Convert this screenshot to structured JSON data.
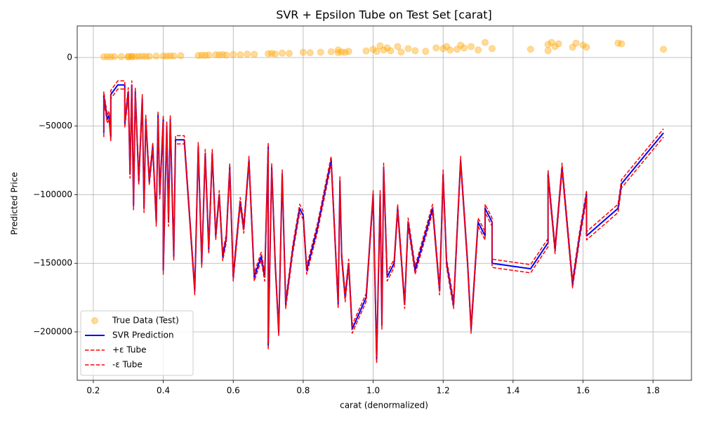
{
  "chart_data": {
    "type": "line",
    "title": "SVR + Epsilon Tube on Test Set [carat]",
    "xlabel": "carat (denormalized)",
    "ylabel": "Predicted Price",
    "xlim": [
      0.154,
      1.91
    ],
    "ylim": [
      -235300,
      23000
    ],
    "xticks": [
      0.2,
      0.4,
      0.6,
      0.8,
      {
        "value": 1,
        "label": "1.0"
      },
      1.2,
      1.4,
      1.6,
      1.8
    ],
    "yticks": [
      {
        "value": -200000,
        "label": "−200000"
      },
      {
        "value": -150000,
        "label": "−150000"
      },
      {
        "value": -100000,
        "label": "−100000"
      },
      {
        "value": -50000,
        "label": "−50000"
      },
      0
    ],
    "grid": true,
    "legend": "lower left",
    "x": [
      0.23,
      0.23,
      0.24,
      0.245,
      0.25,
      0.25,
      0.27,
      0.29,
      0.29,
      0.3,
      0.305,
      0.31,
      0.315,
      0.32,
      0.33,
      0.34,
      0.345,
      0.35,
      0.36,
      0.37,
      0.38,
      0.385,
      0.39,
      0.4,
      0.4,
      0.41,
      0.415,
      0.42,
      0.43,
      0.435,
      0.46,
      0.49,
      0.5,
      0.51,
      0.52,
      0.53,
      0.54,
      0.55,
      0.56,
      0.57,
      0.58,
      0.59,
      0.6,
      0.62,
      0.63,
      0.645,
      0.66,
      0.68,
      0.69,
      0.7,
      0.7,
      0.71,
      0.72,
      0.73,
      0.74,
      0.75,
      0.77,
      0.79,
      0.8,
      0.81,
      0.84,
      0.88,
      0.9,
      0.905,
      0.91,
      0.92,
      0.93,
      0.94,
      0.98,
      1.0,
      1.01,
      1.02,
      1.025,
      1.03,
      1.04,
      1.06,
      1.07,
      1.09,
      1.1,
      1.12,
      1.17,
      1.19,
      1.2,
      1.21,
      1.23,
      1.25,
      1.27,
      1.28,
      1.3,
      1.32,
      1.32,
      1.34,
      1.34,
      1.45,
      1.5,
      1.5,
      1.52,
      1.54,
      1.57,
      1.59,
      1.61,
      1.61,
      1.7,
      1.71,
      1.83
    ],
    "series": [
      {
        "name": "True Data (Test)",
        "type": "scatter",
        "color": "#ffa500",
        "alpha": 0.4,
        "x": [
          0.23,
          0.24,
          0.25,
          0.26,
          0.28,
          0.3,
          0.3,
          0.31,
          0.31,
          0.32,
          0.33,
          0.34,
          0.35,
          0.36,
          0.38,
          0.4,
          0.41,
          0.42,
          0.43,
          0.45,
          0.5,
          0.51,
          0.52,
          0.53,
          0.55,
          0.56,
          0.57,
          0.58,
          0.6,
          0.62,
          0.64,
          0.66,
          0.7,
          0.71,
          0.72,
          0.74,
          0.76,
          0.8,
          0.82,
          0.85,
          0.88,
          0.9,
          0.9,
          0.91,
          0.92,
          0.93,
          0.98,
          1.0,
          1.01,
          1.02,
          1.03,
          1.04,
          1.05,
          1.07,
          1.08,
          1.1,
          1.12,
          1.15,
          1.18,
          1.2,
          1.21,
          1.22,
          1.24,
          1.25,
          1.26,
          1.28,
          1.3,
          1.32,
          1.34,
          1.45,
          1.5,
          1.5,
          1.51,
          1.52,
          1.53,
          1.57,
          1.58,
          1.6,
          1.61,
          1.7,
          1.71,
          1.83
        ],
        "values": [
          500,
          600,
          500,
          700,
          600,
          700,
          500,
          800,
          600,
          700,
          800,
          900,
          800,
          900,
          1000,
          1100,
          1000,
          1200,
          1100,
          1300,
          1500,
          1700,
          1600,
          1800,
          2000,
          1900,
          2100,
          1800,
          2200,
          2000,
          2500,
          2300,
          2800,
          3000,
          2600,
          3200,
          3000,
          3800,
          3500,
          3900,
          4200,
          5500,
          3500,
          4000,
          3800,
          4500,
          4800,
          6000,
          4500,
          8500,
          5500,
          7000,
          5000,
          8000,
          4000,
          6500,
          5000,
          4500,
          7000,
          6500,
          8000,
          5500,
          6000,
          9000,
          7000,
          8000,
          5500,
          11000,
          6500,
          6000,
          9500,
          5000,
          11000,
          8000,
          10000,
          7500,
          10500,
          9000,
          7500,
          10500,
          10000,
          6000
        ]
      },
      {
        "name": "SVR Prediction",
        "type": "line",
        "color": "#0000ff",
        "linestyle": "solid",
        "values": [
          -55000,
          -28000,
          -45000,
          -42000,
          -58000,
          -27000,
          -20000,
          -20000,
          -48000,
          -25000,
          -85000,
          -20000,
          -108000,
          -25000,
          -90000,
          -30000,
          -110000,
          -45000,
          -90000,
          -65000,
          -120000,
          -42000,
          -100000,
          -45000,
          -155000,
          -50000,
          -120000,
          -45000,
          -145000,
          -60000,
          -60000,
          -170000,
          -65000,
          -150000,
          -70000,
          -140000,
          -70000,
          -130000,
          -100000,
          -145000,
          -132000,
          -80000,
          -160000,
          -105000,
          -125000,
          -75000,
          -160000,
          -145000,
          -160000,
          -65000,
          -210000,
          -80000,
          -150000,
          -200000,
          -85000,
          -180000,
          -140000,
          -110000,
          -115000,
          -155000,
          -125000,
          -75000,
          -180000,
          -90000,
          -145000,
          -175000,
          -150000,
          -198000,
          -175000,
          -100000,
          -220000,
          -100000,
          -195000,
          -80000,
          -160000,
          -150000,
          -110000,
          -180000,
          -120000,
          -155000,
          -110000,
          -170000,
          -85000,
          -150000,
          -180000,
          -75000,
          -150000,
          -198000,
          -120000,
          -130000,
          -110000,
          -120000,
          -150000,
          -154000,
          -135000,
          -85000,
          -140000,
          -80000,
          -165000,
          -130000,
          -100000,
          -130000,
          -110000,
          -92000,
          -55000
        ]
      },
      {
        "name": "+ε Tube",
        "type": "line",
        "color": "#ff0000",
        "linestyle": "dashed",
        "values": [
          -52000,
          -25000,
          -42000,
          -39000,
          -55000,
          -24000,
          -17000,
          -17000,
          -45000,
          -22000,
          -82000,
          -17000,
          -105000,
          -22000,
          -87000,
          -27000,
          -107000,
          -42000,
          -87000,
          -62000,
          -117000,
          -39000,
          -97000,
          -42000,
          -152000,
          -47000,
          -117000,
          -42000,
          -142000,
          -57000,
          -57000,
          -167000,
          -62000,
          -147000,
          -67000,
          -137000,
          -67000,
          -127000,
          -97000,
          -142000,
          -129000,
          -77000,
          -157000,
          -102000,
          -122000,
          -72000,
          -157000,
          -142000,
          -157000,
          -62000,
          -207000,
          -77000,
          -147000,
          -197000,
          -82000,
          -177000,
          -137000,
          -107000,
          -112000,
          -152000,
          -122000,
          -72000,
          -177000,
          -87000,
          -142000,
          -172000,
          -147000,
          -195000,
          -172000,
          -97000,
          -217000,
          -97000,
          -192000,
          -77000,
          -157000,
          -147000,
          -107000,
          -177000,
          -117000,
          -152000,
          -107000,
          -167000,
          -82000,
          -147000,
          -177000,
          -72000,
          -147000,
          -195000,
          -117000,
          -127000,
          -107000,
          -117000,
          -147000,
          -151000,
          -132000,
          -82000,
          -137000,
          -77000,
          -162000,
          -127000,
          -97000,
          -127000,
          -107000,
          -89000,
          -52000
        ]
      },
      {
        "name": "-ε Tube",
        "type": "line",
        "color": "#ff0000",
        "linestyle": "dashed",
        "values": [
          -58000,
          -31000,
          -48000,
          -45000,
          -61000,
          -30000,
          -23000,
          -23000,
          -51000,
          -28000,
          -88000,
          -23000,
          -111000,
          -28000,
          -93000,
          -33000,
          -113000,
          -48000,
          -93000,
          -68000,
          -123000,
          -45000,
          -103000,
          -48000,
          -158000,
          -53000,
          -123000,
          -48000,
          -148000,
          -63000,
          -63000,
          -173000,
          -68000,
          -153000,
          -73000,
          -143000,
          -73000,
          -133000,
          -103000,
          -148000,
          -135000,
          -83000,
          -163000,
          -108000,
          -128000,
          -78000,
          -163000,
          -148000,
          -163000,
          -68000,
          -213000,
          -83000,
          -153000,
          -203000,
          -88000,
          -183000,
          -143000,
          -113000,
          -118000,
          -158000,
          -128000,
          -78000,
          -183000,
          -93000,
          -148000,
          -178000,
          -153000,
          -201000,
          -178000,
          -103000,
          -223000,
          -103000,
          -198000,
          -83000,
          -163000,
          -153000,
          -113000,
          -183000,
          -123000,
          -158000,
          -113000,
          -173000,
          -88000,
          -153000,
          -183000,
          -78000,
          -153000,
          -201000,
          -123000,
          -133000,
          -113000,
          -123000,
          -153000,
          -157000,
          -138000,
          -88000,
          -143000,
          -83000,
          -168000,
          -133000,
          -103000,
          -133000,
          -113000,
          -95000,
          -58000
        ]
      }
    ]
  }
}
